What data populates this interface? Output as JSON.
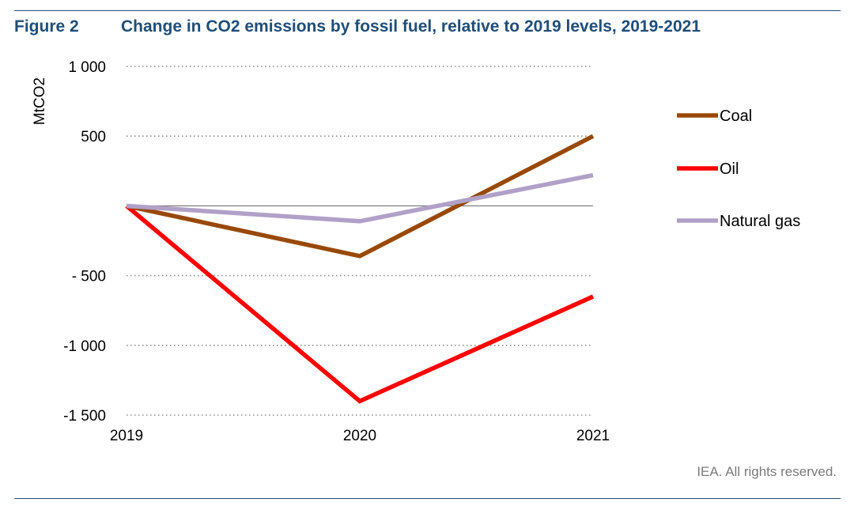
{
  "figure": {
    "label": "Figure 2",
    "title": "Change in CO2 emissions by fossil fuel, relative to 2019 levels, 2019-2021",
    "footer": "IEA. All rights reserved."
  },
  "chart_data": {
    "type": "line",
    "title": "Change in CO2 emissions by fossil fuel, relative to 2019 levels, 2019-2021",
    "xlabel": "",
    "ylabel": "MtCO2",
    "x": [
      "2019",
      "2020",
      "2021"
    ],
    "ylim": [
      -1500,
      1000
    ],
    "yticks": [
      1000,
      500,
      -500,
      -1000,
      -1500
    ],
    "ytick_labels": [
      "1 000",
      "500",
      "- 500",
      "-1 000",
      "-1 500"
    ],
    "grid": "horizontal dotted",
    "legend_position": "right",
    "series": [
      {
        "name": "Coal",
        "color": "#984807",
        "values": [
          0,
          -360,
          500
        ]
      },
      {
        "name": "Oil",
        "color": "#ff0000",
        "values": [
          0,
          -1400,
          -650
        ]
      },
      {
        "name": "Natural gas",
        "color": "#b1a0c7",
        "values": [
          0,
          -110,
          220
        ]
      }
    ]
  }
}
